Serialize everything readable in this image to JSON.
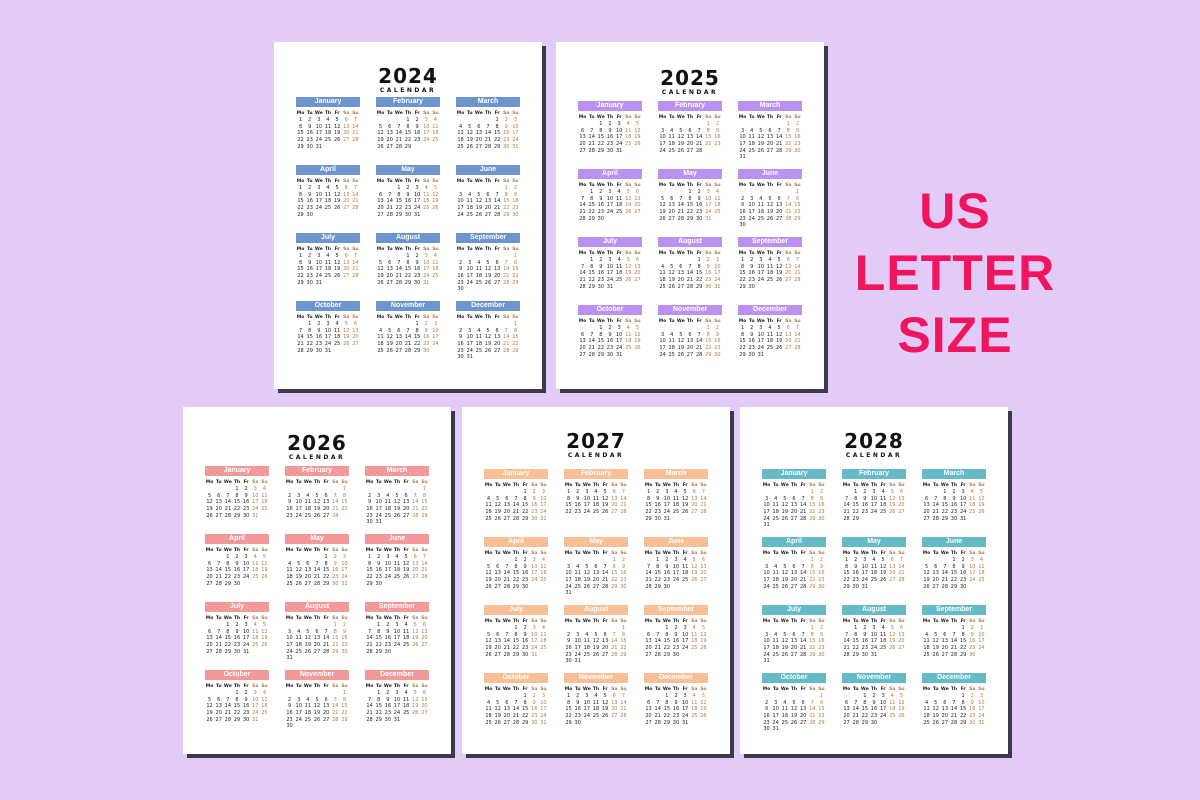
{
  "headline": {
    "line1": "US LETTER",
    "line2": "SIZE"
  },
  "calendar_word": "CALENDAR",
  "weekday_labels": [
    "Mo",
    "Tu",
    "We",
    "Th",
    "Fr",
    "Sa",
    "Su"
  ],
  "month_names": [
    "January",
    "February",
    "March",
    "April",
    "May",
    "June",
    "July",
    "August",
    "September",
    "October",
    "November",
    "December"
  ],
  "calendars": [
    {
      "year": 2024,
      "year_label": "2024",
      "accent": "#6b95cc"
    },
    {
      "year": 2025,
      "year_label": "2025",
      "accent": "#bb92f2"
    },
    {
      "year": 2026,
      "year_label": "2026",
      "accent": "#f2999a"
    },
    {
      "year": 2027,
      "year_label": "2027",
      "accent": "#f9bf97"
    },
    {
      "year": 2028,
      "year_label": "2028",
      "accent": "#65bcc8"
    }
  ],
  "colors": {
    "background": "#e3cbf7",
    "headline": "#f0155f",
    "weekend_text": "#b07a4a"
  }
}
